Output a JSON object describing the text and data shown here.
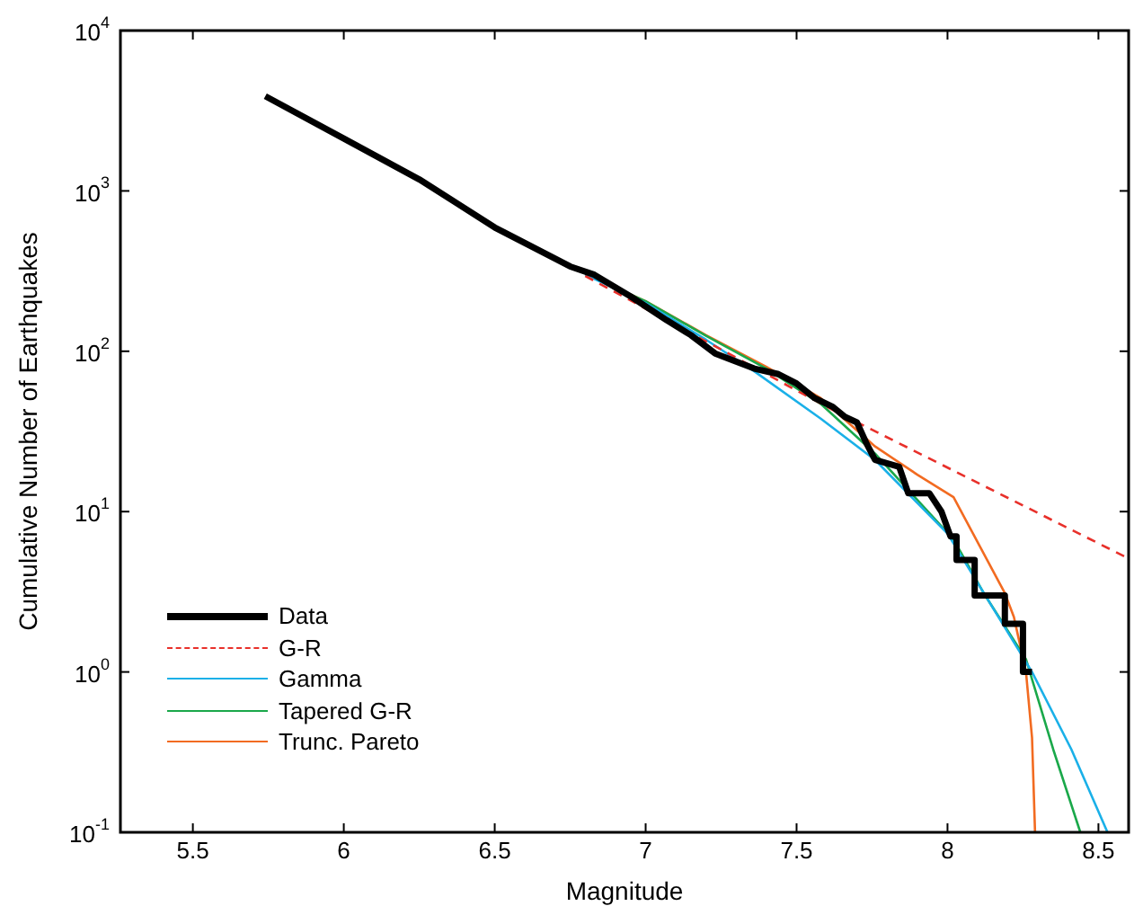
{
  "chart_data": {
    "type": "line",
    "xlabel": "Magnitude",
    "ylabel": "Cumulative Number of Earthquakes",
    "xlim": [
      5.26,
      8.6
    ],
    "xticks": [
      5.5,
      6,
      6.5,
      7,
      7.5,
      8,
      8.5
    ],
    "ylim": [
      0.1,
      10000
    ],
    "yticks": [
      {
        "value": 0.1,
        "label": "10$^{-1}$"
      },
      {
        "value": 1,
        "label": "10$^{0}$"
      },
      {
        "value": 10,
        "label": "10$^{1}$"
      },
      {
        "value": 100,
        "label": "10$^{2}$"
      },
      {
        "value": 1000,
        "label": "10$^{3}$"
      },
      {
        "value": 10000,
        "label": "10$^{4}$"
      }
    ],
    "log": "y",
    "grid": false,
    "legend": "bottom left",
    "marker": "none",
    "series": [
      {
        "name": "Data",
        "color": "#000000",
        "line_style": "solid",
        "x": [
          5.74,
          6.0,
          6.25,
          6.5,
          6.75,
          6.83,
          6.95,
          7.07,
          7.15,
          7.23,
          7.28,
          7.36,
          7.44,
          7.5,
          7.56,
          7.62,
          7.66,
          7.7,
          7.73,
          7.76,
          7.84,
          7.87,
          7.94,
          7.98,
          8.01,
          8.03,
          8.03,
          8.09,
          8.09,
          8.19,
          8.19,
          8.25,
          8.25,
          8.28
        ],
        "values": [
          3900,
          2120,
          1180,
          592,
          338,
          300,
          220,
          156,
          126,
          97,
          89,
          78,
          72,
          63,
          51,
          45,
          39,
          36,
          27,
          21,
          19,
          13,
          13,
          10,
          7,
          7,
          5,
          5,
          3,
          3,
          2,
          2,
          1,
          1
        ]
      },
      {
        "name": "G-R",
        "color": "#e8302a",
        "line_style": "dashed",
        "x": [
          6.8,
          7.62,
          8.6
        ],
        "values": [
          295,
          43,
          5.1
        ]
      },
      {
        "name": "Gamma",
        "color": "#1ab0e8",
        "line_style": "solid",
        "x": [
          6.8,
          7.0,
          7.2,
          7.36,
          7.58,
          7.76,
          8.0,
          8.28,
          8.41,
          8.53
        ],
        "values": [
          300,
          200,
          118,
          75,
          38,
          21,
          7.3,
          1,
          0.33,
          0.1
        ]
      },
      {
        "name": "Tapered G-R",
        "color": "#1aa84a",
        "line_style": "solid",
        "x": [
          6.8,
          7.0,
          7.2,
          7.4,
          7.58,
          7.76,
          8.02,
          8.12,
          8.26,
          8.35,
          8.44
        ],
        "values": [
          302,
          205,
          125,
          78,
          47,
          23,
          6.7,
          3.1,
          1.2,
          0.33,
          0.1
        ]
      },
      {
        "name": "Trunc. Pareto",
        "color": "#f26b21",
        "line_style": "solid",
        "x": [
          6.8,
          7.0,
          7.2,
          7.4,
          7.58,
          7.76,
          7.9,
          8.02,
          8.19,
          8.22,
          8.26,
          8.28,
          8.29
        ],
        "values": [
          302,
          205,
          126,
          80,
          51,
          25.5,
          17,
          12.3,
          3.1,
          2.2,
          1,
          0.39,
          0.1
        ]
      }
    ]
  }
}
